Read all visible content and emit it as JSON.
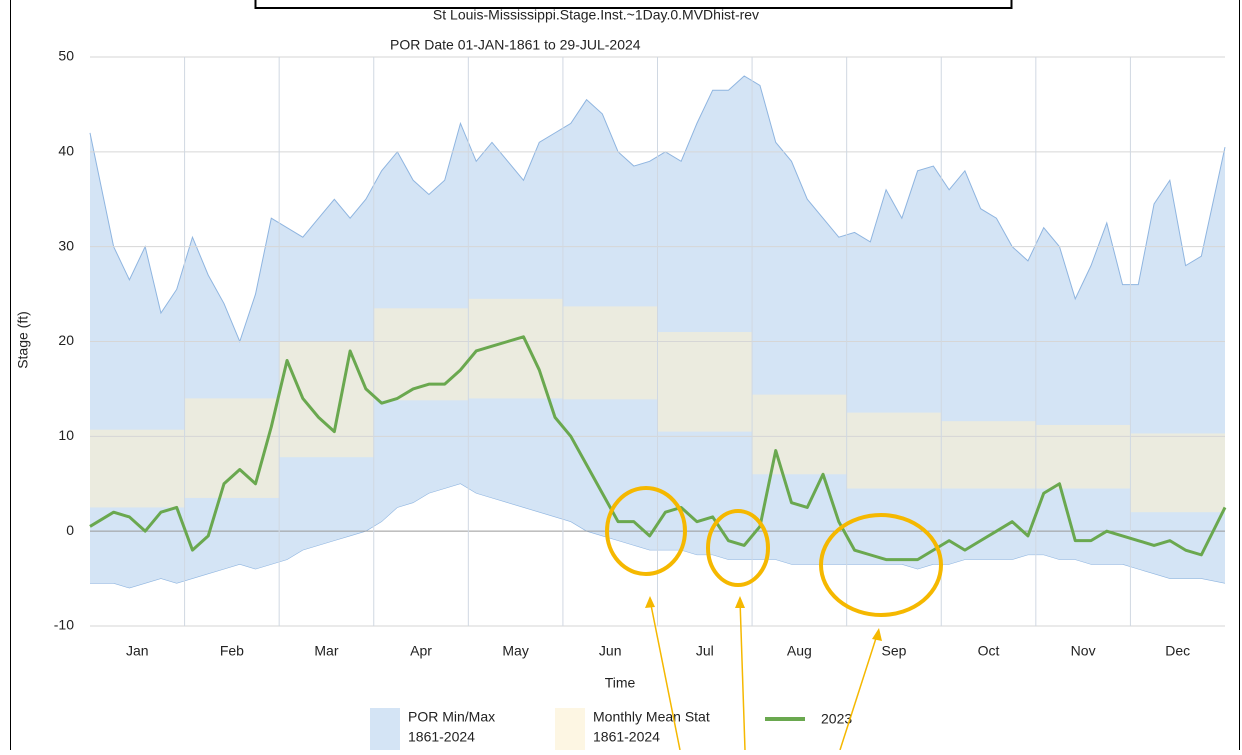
{
  "chart_data": {
    "type": "area",
    "title": "St Louis-Mississippi.Stage.Inst.~1Day.0.MVDhist-rev",
    "subtitle": "POR Date 01-JAN-1861 to 29-JUL-2024",
    "x_label": "Time",
    "y_label": "Stage (ft)",
    "categories": [
      "Jan",
      "Feb",
      "Mar",
      "Apr",
      "May",
      "Jun",
      "Jul",
      "Aug",
      "Sep",
      "Oct",
      "Nov",
      "Dec"
    ],
    "ylim": [
      -10,
      50
    ],
    "yticks": [
      -10,
      0,
      10,
      20,
      30,
      40,
      50
    ],
    "grid": true,
    "legend": "bottom",
    "series": [
      {
        "name": "POR Min/Max",
        "period": "1861-2024",
        "kind": "band",
        "color": "#d4e4f5",
        "line_color": "#8fb5e0",
        "high": [
          [
            42,
            30,
            26.5,
            30,
            23,
            25.5
          ],
          [
            31,
            27,
            24,
            20,
            25,
            33
          ],
          [
            32,
            31,
            33,
            35,
            33,
            35
          ],
          [
            38,
            40,
            37,
            35.5,
            37,
            43
          ],
          [
            39,
            41,
            39,
            37,
            41,
            42
          ],
          [
            43,
            45.5,
            44,
            40,
            38.5,
            39
          ],
          [
            40,
            39,
            43,
            46.5,
            46.5,
            48
          ],
          [
            47,
            41,
            39,
            35,
            33,
            31
          ],
          [
            31.5,
            30.5,
            36,
            33,
            38,
            38.5
          ],
          [
            36,
            38,
            34,
            33,
            30,
            28.5
          ],
          [
            32,
            30,
            24.5,
            28,
            32.5,
            26
          ],
          [
            26,
            34.5,
            37,
            28,
            29,
            40.5
          ]
        ],
        "low": [
          [
            -5.5,
            -5.5,
            -6,
            -5.5,
            -5,
            -5.5
          ],
          [
            -5,
            -4.5,
            -4,
            -3.5,
            -4,
            -3.5
          ],
          [
            -3,
            -2,
            -1.5,
            -1,
            -0.5,
            0
          ],
          [
            1,
            2.5,
            3,
            4,
            4.5,
            5
          ],
          [
            4,
            3.5,
            3,
            2.5,
            2,
            1.5
          ],
          [
            1,
            0,
            -0.5,
            -1,
            -1.5,
            -2
          ],
          [
            -2,
            -2,
            -2.5,
            -2.5,
            -3,
            -3
          ],
          [
            -3,
            -3,
            -3.5,
            -3.5,
            -3.5,
            -3.5
          ],
          [
            -3.5,
            -3.5,
            -3.5,
            -3.5,
            -4,
            -3.5
          ],
          [
            -3.5,
            -3,
            -3,
            -3,
            -3,
            -2.5
          ],
          [
            -2.5,
            -3,
            -3,
            -3.5,
            -3.5,
            -3.5
          ],
          [
            -4,
            -4.5,
            -5,
            -5,
            -5,
            -5.5
          ]
        ]
      },
      {
        "name": "Monthly Mean Stat",
        "period": "1861-2024",
        "kind": "step",
        "color": "#ebebdf",
        "legend_color": "#fdf6e3",
        "high": [
          10.7,
          14,
          20,
          23.5,
          24.5,
          23.7,
          21,
          14.4,
          12.5,
          11.6,
          11.2,
          10.3
        ],
        "low": [
          2.5,
          3.5,
          7.8,
          13.8,
          14,
          13.9,
          10.5,
          6,
          4.5,
          4.5,
          4.5,
          2
        ]
      },
      {
        "name": "2023",
        "kind": "line",
        "color": "#6aa84f",
        "values": [
          [
            0.5,
            2,
            1.5,
            0,
            2,
            2.5
          ],
          [
            -2,
            -0.5,
            5,
            6.5,
            5,
            11
          ],
          [
            18,
            14,
            12,
            10.5,
            19,
            15
          ],
          [
            13.5,
            14,
            15,
            15.5,
            15.5,
            17
          ],
          [
            19,
            19.5,
            20,
            20.5,
            17,
            12
          ],
          [
            10,
            7,
            4,
            1,
            1,
            -0.5
          ],
          [
            2,
            2.5,
            1,
            1.5,
            -1,
            -1.5
          ],
          [
            0.5,
            8.5,
            3,
            2.5,
            6,
            1
          ],
          [
            -2,
            -2.5,
            -3,
            -3,
            -3,
            -2
          ],
          [
            -1,
            -2,
            -1,
            0,
            1,
            -0.5
          ],
          [
            4,
            5,
            -1,
            -1,
            0,
            -0.5
          ],
          [
            -1,
            -1.5,
            -1,
            -2,
            -2.5,
            2.5
          ]
        ]
      }
    ]
  }
}
